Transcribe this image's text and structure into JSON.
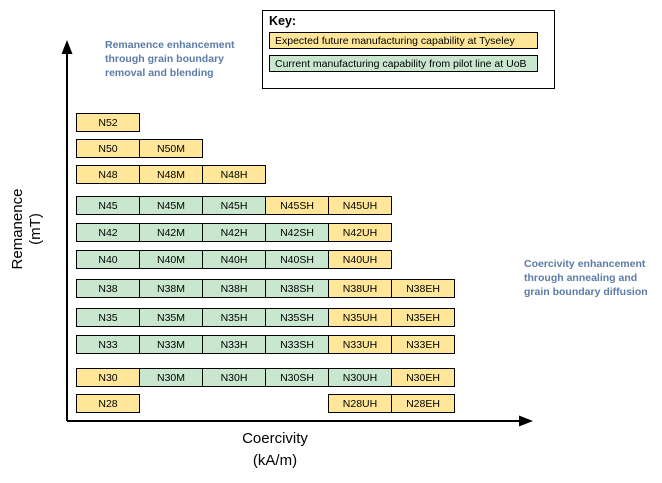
{
  "key": {
    "title": "Key:",
    "entries": [
      {
        "id": "future",
        "label": "Expected future manufacturing capability at Tyseley"
      },
      {
        "id": "current",
        "label": "Current manufacturing capability from pilot line at UoB"
      }
    ]
  },
  "colors": {
    "future": "#FFE699",
    "current": "#C9E7CF"
  },
  "annotations": {
    "left": "Remanence enhancement through grain boundary removal and blending",
    "right": "Coercivity enhancement through annealing and grain boundary diffusion"
  },
  "axes": {
    "x": {
      "line1": "Coercivity",
      "line2": "(kA/m)"
    },
    "y": {
      "line1": "Remanence",
      "line2": "(mT)"
    }
  },
  "chart_data": {
    "type": "table",
    "title": "",
    "xlabel": "Coercivity (kA/m)",
    "ylabel": "Remanence (mT)",
    "legend": {
      "future": "Expected future manufacturing capability at Tyseley",
      "current": "Current manufacturing capability from pilot line at UoB"
    },
    "columns": [
      "",
      "M",
      "H",
      "SH",
      "UH",
      "EH"
    ],
    "rows": [
      {
        "grade": "N52",
        "cells": [
          {
            "label": "N52",
            "col": 0,
            "status": "future"
          }
        ]
      },
      {
        "grade": "N50",
        "cells": [
          {
            "label": "N50",
            "col": 0,
            "status": "future"
          },
          {
            "label": "N50M",
            "col": 1,
            "status": "future"
          }
        ]
      },
      {
        "grade": "N48",
        "cells": [
          {
            "label": "N48",
            "col": 0,
            "status": "future"
          },
          {
            "label": "N48M",
            "col": 1,
            "status": "future"
          },
          {
            "label": "N48H",
            "col": 2,
            "status": "future"
          }
        ]
      },
      {
        "grade": "N45",
        "cells": [
          {
            "label": "N45",
            "col": 0,
            "status": "current"
          },
          {
            "label": "N45M",
            "col": 1,
            "status": "current"
          },
          {
            "label": "N45H",
            "col": 2,
            "status": "current"
          },
          {
            "label": "N45SH",
            "col": 3,
            "status": "future"
          },
          {
            "label": "N45UH",
            "col": 4,
            "status": "future"
          }
        ]
      },
      {
        "grade": "N42",
        "cells": [
          {
            "label": "N42",
            "col": 0,
            "status": "current"
          },
          {
            "label": "N42M",
            "col": 1,
            "status": "current"
          },
          {
            "label": "N42H",
            "col": 2,
            "status": "current"
          },
          {
            "label": "N42SH",
            "col": 3,
            "status": "current"
          },
          {
            "label": "N42UH",
            "col": 4,
            "status": "future"
          }
        ]
      },
      {
        "grade": "N40",
        "cells": [
          {
            "label": "N40",
            "col": 0,
            "status": "current"
          },
          {
            "label": "N40M",
            "col": 1,
            "status": "current"
          },
          {
            "label": "N40H",
            "col": 2,
            "status": "current"
          },
          {
            "label": "N40SH",
            "col": 3,
            "status": "current"
          },
          {
            "label": "N40UH",
            "col": 4,
            "status": "future"
          }
        ]
      },
      {
        "grade": "N38",
        "cells": [
          {
            "label": "N38",
            "col": 0,
            "status": "current"
          },
          {
            "label": "N38M",
            "col": 1,
            "status": "current"
          },
          {
            "label": "N38H",
            "col": 2,
            "status": "current"
          },
          {
            "label": "N38SH",
            "col": 3,
            "status": "current"
          },
          {
            "label": "N38UH",
            "col": 4,
            "status": "future"
          },
          {
            "label": "N38EH",
            "col": 5,
            "status": "future"
          }
        ]
      },
      {
        "grade": "N35",
        "cells": [
          {
            "label": "N35",
            "col": 0,
            "status": "current"
          },
          {
            "label": "N35M",
            "col": 1,
            "status": "current"
          },
          {
            "label": "N35H",
            "col": 2,
            "status": "current"
          },
          {
            "label": "N35SH",
            "col": 3,
            "status": "current"
          },
          {
            "label": "N35UH",
            "col": 4,
            "status": "future"
          },
          {
            "label": "N35EH",
            "col": 5,
            "status": "future"
          }
        ]
      },
      {
        "grade": "N33",
        "cells": [
          {
            "label": "N33",
            "col": 0,
            "status": "current"
          },
          {
            "label": "N33M",
            "col": 1,
            "status": "current"
          },
          {
            "label": "N33H",
            "col": 2,
            "status": "current"
          },
          {
            "label": "N33SH",
            "col": 3,
            "status": "current"
          },
          {
            "label": "N33UH",
            "col": 4,
            "status": "future"
          },
          {
            "label": "N33EH",
            "col": 5,
            "status": "future"
          }
        ]
      },
      {
        "grade": "N30",
        "cells": [
          {
            "label": "N30",
            "col": 0,
            "status": "future"
          },
          {
            "label": "N30M",
            "col": 1,
            "status": "current"
          },
          {
            "label": "N30H",
            "col": 2,
            "status": "current"
          },
          {
            "label": "N30SH",
            "col": 3,
            "status": "current"
          },
          {
            "label": "N30UH",
            "col": 4,
            "status": "current"
          },
          {
            "label": "N30EH",
            "col": 5,
            "status": "future"
          }
        ]
      },
      {
        "grade": "N28",
        "cells": [
          {
            "label": "N28",
            "col": 0,
            "status": "future"
          },
          {
            "label": "N28UH",
            "col": 4,
            "status": "future"
          },
          {
            "label": "N28EH",
            "col": 5,
            "status": "future"
          }
        ]
      }
    ]
  }
}
